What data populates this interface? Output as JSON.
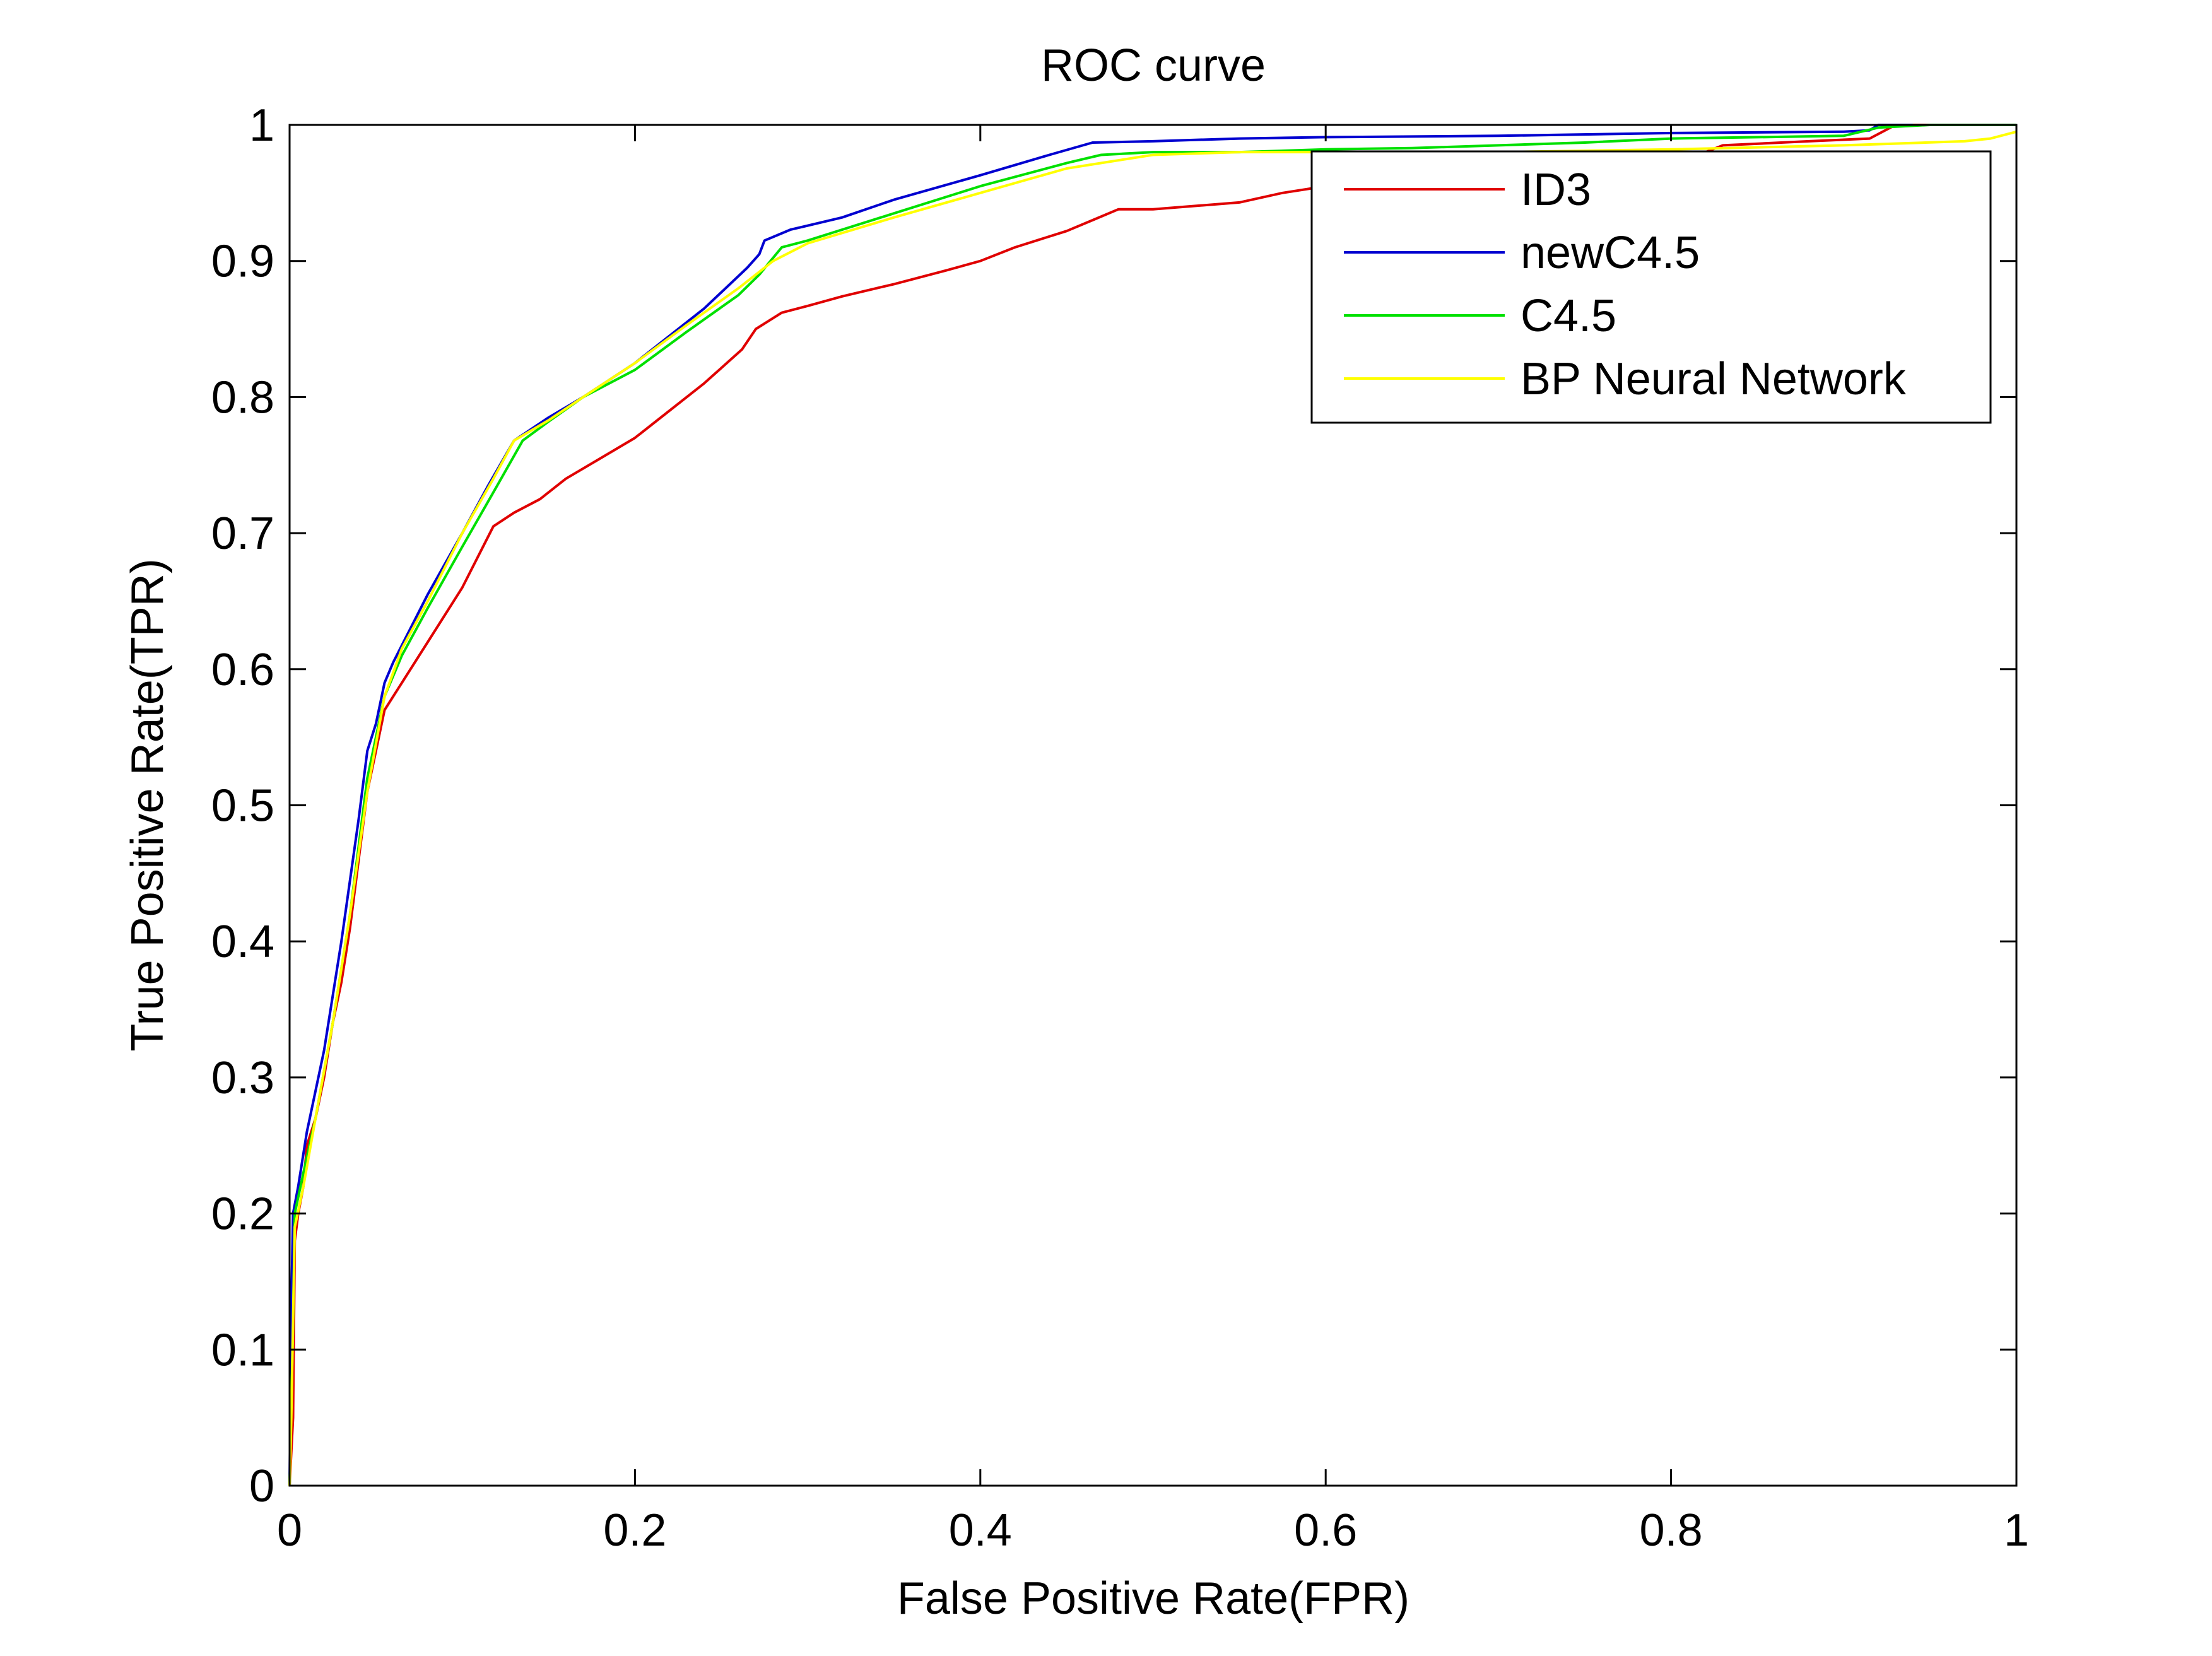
{
  "chart_data": {
    "type": "line",
    "title": "ROC curve",
    "xlabel": "False Positive Rate(FPR)",
    "ylabel": "True Positive Rate(TPR)",
    "xlim": [
      0,
      1
    ],
    "ylim": [
      0,
      1
    ],
    "xticks": [
      0,
      0.2,
      0.4,
      0.6,
      0.8,
      1
    ],
    "xtick_labels": [
      "0",
      "0.2",
      "0.4",
      "0.6",
      "0.8",
      "1"
    ],
    "yticks": [
      0,
      0.1,
      0.2,
      0.3,
      0.4,
      0.5,
      0.6,
      0.7,
      0.8,
      0.9,
      1
    ],
    "ytick_labels": [
      "0",
      "0.1",
      "0.2",
      "0.3",
      "0.4",
      "0.5",
      "0.6",
      "0.7",
      "0.8",
      "0.9",
      "1"
    ],
    "grid": false,
    "legend_position": "top-right",
    "series": [
      {
        "name": "ID3",
        "color": "#e00000",
        "points": [
          [
            0,
            0
          ],
          [
            0.002,
            0.05
          ],
          [
            0.003,
            0.18
          ],
          [
            0.005,
            0.2
          ],
          [
            0.008,
            0.22
          ],
          [
            0.01,
            0.25
          ],
          [
            0.015,
            0.27
          ],
          [
            0.02,
            0.3
          ],
          [
            0.025,
            0.34
          ],
          [
            0.03,
            0.37
          ],
          [
            0.035,
            0.41
          ],
          [
            0.04,
            0.46
          ],
          [
            0.045,
            0.51
          ],
          [
            0.05,
            0.54
          ],
          [
            0.055,
            0.57
          ],
          [
            0.065,
            0.59
          ],
          [
            0.08,
            0.62
          ],
          [
            0.1,
            0.66
          ],
          [
            0.118,
            0.705
          ],
          [
            0.13,
            0.715
          ],
          [
            0.145,
            0.725
          ],
          [
            0.16,
            0.74
          ],
          [
            0.18,
            0.755
          ],
          [
            0.2,
            0.77
          ],
          [
            0.22,
            0.79
          ],
          [
            0.24,
            0.81
          ],
          [
            0.262,
            0.835
          ],
          [
            0.27,
            0.85
          ],
          [
            0.285,
            0.862
          ],
          [
            0.3,
            0.867
          ],
          [
            0.32,
            0.874
          ],
          [
            0.35,
            0.883
          ],
          [
            0.38,
            0.893
          ],
          [
            0.4,
            0.9
          ],
          [
            0.42,
            0.91
          ],
          [
            0.45,
            0.922
          ],
          [
            0.465,
            0.93
          ],
          [
            0.48,
            0.938
          ],
          [
            0.5,
            0.938
          ],
          [
            0.52,
            0.94
          ],
          [
            0.55,
            0.943
          ],
          [
            0.575,
            0.95
          ],
          [
            0.6,
            0.955
          ],
          [
            0.65,
            0.96
          ],
          [
            0.7,
            0.965
          ],
          [
            0.76,
            0.975
          ],
          [
            0.82,
            0.98
          ],
          [
            0.83,
            0.985
          ],
          [
            0.88,
            0.988
          ],
          [
            0.915,
            0.99
          ],
          [
            0.93,
            1
          ],
          [
            1,
            1
          ]
        ]
      },
      {
        "name": "newC4.5",
        "color": "#0000d0",
        "points": [
          [
            0,
            0
          ],
          [
            0.001,
            0.13
          ],
          [
            0.002,
            0.2
          ],
          [
            0.005,
            0.22
          ],
          [
            0.01,
            0.26
          ],
          [
            0.02,
            0.32
          ],
          [
            0.03,
            0.4
          ],
          [
            0.04,
            0.49
          ],
          [
            0.045,
            0.54
          ],
          [
            0.05,
            0.56
          ],
          [
            0.055,
            0.59
          ],
          [
            0.06,
            0.605
          ],
          [
            0.07,
            0.63
          ],
          [
            0.08,
            0.655
          ],
          [
            0.1,
            0.7
          ],
          [
            0.115,
            0.735
          ],
          [
            0.13,
            0.768
          ],
          [
            0.15,
            0.785
          ],
          [
            0.17,
            0.8
          ],
          [
            0.2,
            0.825
          ],
          [
            0.24,
            0.865
          ],
          [
            0.265,
            0.895
          ],
          [
            0.272,
            0.905
          ],
          [
            0.275,
            0.915
          ],
          [
            0.29,
            0.923
          ],
          [
            0.32,
            0.932
          ],
          [
            0.35,
            0.945
          ],
          [
            0.4,
            0.963
          ],
          [
            0.44,
            0.978
          ],
          [
            0.465,
            0.987
          ],
          [
            0.5,
            0.988
          ],
          [
            0.55,
            0.99
          ],
          [
            0.6,
            0.991
          ],
          [
            0.7,
            0.992
          ],
          [
            0.8,
            0.994
          ],
          [
            0.9,
            0.995
          ],
          [
            0.915,
            0.996
          ],
          [
            0.92,
            1
          ],
          [
            0.94,
            1
          ]
        ]
      },
      {
        "name": "C4.5",
        "color": "#00e000",
        "points": [
          [
            0,
            0
          ],
          [
            0.002,
            0.12
          ],
          [
            0.003,
            0.2
          ],
          [
            0.008,
            0.23
          ],
          [
            0.015,
            0.27
          ],
          [
            0.025,
            0.34
          ],
          [
            0.035,
            0.42
          ],
          [
            0.045,
            0.52
          ],
          [
            0.055,
            0.58
          ],
          [
            0.065,
            0.61
          ],
          [
            0.08,
            0.645
          ],
          [
            0.1,
            0.69
          ],
          [
            0.118,
            0.73
          ],
          [
            0.135,
            0.768
          ],
          [
            0.15,
            0.782
          ],
          [
            0.17,
            0.8
          ],
          [
            0.2,
            0.82
          ],
          [
            0.23,
            0.848
          ],
          [
            0.26,
            0.875
          ],
          [
            0.272,
            0.89
          ],
          [
            0.285,
            0.91
          ],
          [
            0.3,
            0.915
          ],
          [
            0.35,
            0.935
          ],
          [
            0.4,
            0.955
          ],
          [
            0.45,
            0.972
          ],
          [
            0.47,
            0.978
          ],
          [
            0.5,
            0.98
          ],
          [
            0.55,
            0.98
          ],
          [
            0.6,
            0.982
          ],
          [
            0.65,
            0.983
          ],
          [
            0.7,
            0.985
          ],
          [
            0.75,
            0.987
          ],
          [
            0.8,
            0.99
          ],
          [
            0.9,
            0.992
          ],
          [
            0.92,
            0.998
          ],
          [
            0.95,
            1
          ],
          [
            1,
            1
          ]
        ]
      },
      {
        "name": "BP Neural Network",
        "color": "#ffff00",
        "points": [
          [
            0,
            0
          ],
          [
            0.001,
            0.05
          ],
          [
            0.003,
            0.19
          ],
          [
            0.008,
            0.22
          ],
          [
            0.015,
            0.27
          ],
          [
            0.025,
            0.34
          ],
          [
            0.035,
            0.42
          ],
          [
            0.045,
            0.51
          ],
          [
            0.055,
            0.58
          ],
          [
            0.065,
            0.615
          ],
          [
            0.08,
            0.65
          ],
          [
            0.1,
            0.7
          ],
          [
            0.118,
            0.74
          ],
          [
            0.13,
            0.768
          ],
          [
            0.15,
            0.783
          ],
          [
            0.17,
            0.8
          ],
          [
            0.2,
            0.825
          ],
          [
            0.23,
            0.853
          ],
          [
            0.26,
            0.88
          ],
          [
            0.28,
            0.9
          ],
          [
            0.3,
            0.913
          ],
          [
            0.35,
            0.932
          ],
          [
            0.4,
            0.95
          ],
          [
            0.45,
            0.968
          ],
          [
            0.5,
            0.978
          ],
          [
            0.55,
            0.98
          ],
          [
            0.6,
            0.98
          ],
          [
            0.7,
            0.98
          ],
          [
            0.8,
            0.982
          ],
          [
            0.9,
            0.985
          ],
          [
            0.97,
            0.988
          ],
          [
            0.985,
            0.99
          ],
          [
            1,
            0.995
          ]
        ]
      }
    ]
  }
}
